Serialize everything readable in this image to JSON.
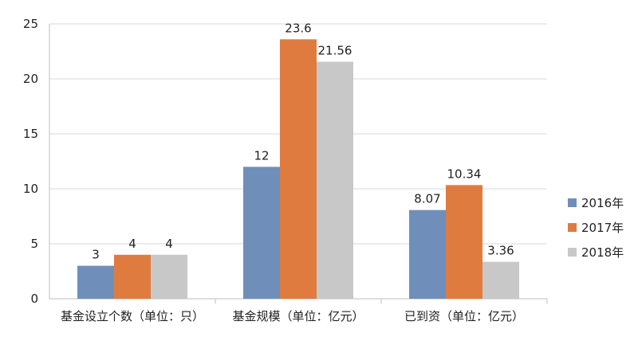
{
  "chart_data": {
    "type": "bar",
    "title": "",
    "xlabel": "",
    "ylabel": "",
    "ylim": [
      0,
      25
    ],
    "yticks": [
      0,
      5,
      10,
      15,
      20,
      25
    ],
    "grid": true,
    "legend_position": "right",
    "categories": [
      "基金设立个数（单位：只）",
      "基金规模（单位：亿元）",
      "已到资（单位：亿元）"
    ],
    "series": [
      {
        "name": "2016年",
        "color": "#6f8fba",
        "values": [
          3,
          12,
          8.07
        ],
        "labels": [
          "3",
          "12",
          "8.07"
        ]
      },
      {
        "name": "2017年",
        "color": "#e07b40",
        "values": [
          4,
          23.6,
          10.34
        ],
        "labels": [
          "4",
          "23.6",
          "10.34"
        ]
      },
      {
        "name": "2018年",
        "color": "#c8c8c8",
        "values": [
          4,
          21.56,
          3.36
        ],
        "labels": [
          "4",
          "21.56",
          "3.36"
        ]
      }
    ]
  }
}
